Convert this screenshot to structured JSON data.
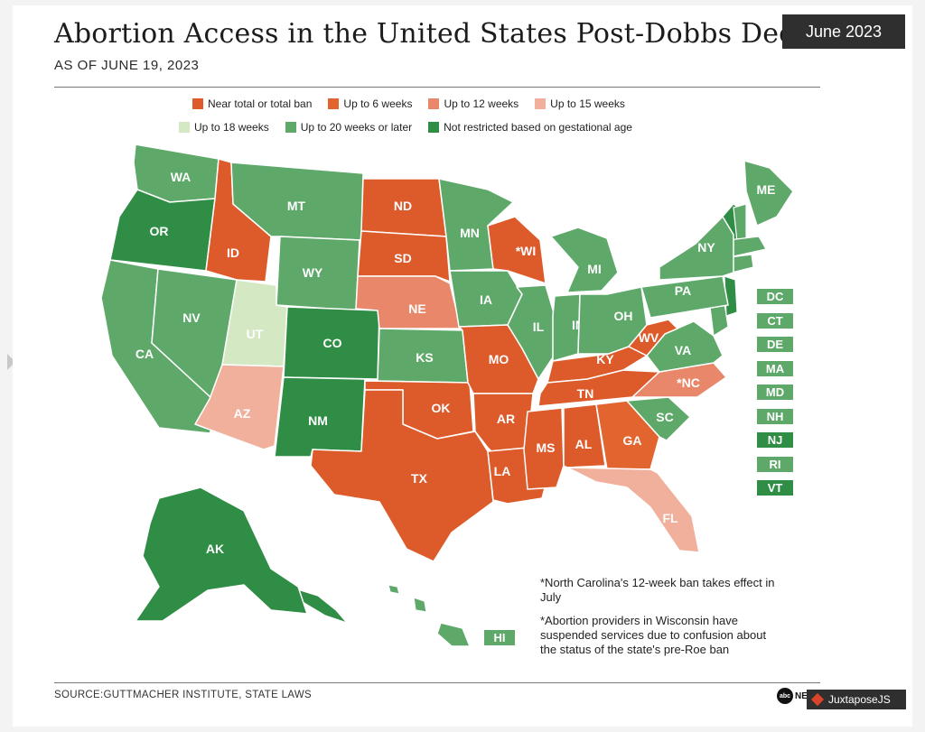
{
  "header": {
    "title": "Abortion Access in the United States Post-Dobbs Decision",
    "subtitle": "AS OF JUNE 19, 2023",
    "badge": "June 2023"
  },
  "colors": {
    "ban": "#dd5a2b",
    "w6": "#e2652f",
    "w12": "#e8876a",
    "w15": "#f1b09c",
    "w18": "#d4e8c4",
    "w20": "#5ea86a",
    "unrestricted": "#2f8d45"
  },
  "legend": {
    "row1": [
      {
        "label": "Near total or total ban",
        "color": "#dd5a2b"
      },
      {
        "label": "Up to 6 weeks",
        "color": "#e2652f"
      },
      {
        "label": "Up to 12 weeks",
        "color": "#e8876a"
      },
      {
        "label": "Up to 15 weeks",
        "color": "#f1b09c"
      }
    ],
    "row2": [
      {
        "label": "Up to 18 weeks",
        "color": "#d4e8c4"
      },
      {
        "label": "Up to 20 weeks or later",
        "color": "#5ea86a"
      },
      {
        "label": "Not restricted based on gestational age",
        "color": "#2f8d45"
      }
    ]
  },
  "states": [
    {
      "abbr": "WA",
      "category": "w20"
    },
    {
      "abbr": "OR",
      "category": "unrestricted"
    },
    {
      "abbr": "CA",
      "category": "w20"
    },
    {
      "abbr": "NV",
      "category": "w20"
    },
    {
      "abbr": "ID",
      "category": "ban"
    },
    {
      "abbr": "MT",
      "category": "w20"
    },
    {
      "abbr": "WY",
      "category": "w20"
    },
    {
      "abbr": "UT",
      "category": "w18"
    },
    {
      "abbr": "AZ",
      "category": "w15"
    },
    {
      "abbr": "CO",
      "category": "unrestricted"
    },
    {
      "abbr": "NM",
      "category": "unrestricted"
    },
    {
      "abbr": "ND",
      "category": "ban"
    },
    {
      "abbr": "SD",
      "category": "ban"
    },
    {
      "abbr": "NE",
      "category": "w12"
    },
    {
      "abbr": "KS",
      "category": "w20"
    },
    {
      "abbr": "OK",
      "category": "ban"
    },
    {
      "abbr": "TX",
      "category": "ban"
    },
    {
      "abbr": "MN",
      "category": "w20"
    },
    {
      "abbr": "IA",
      "category": "w20"
    },
    {
      "abbr": "MO",
      "category": "ban"
    },
    {
      "abbr": "AR",
      "category": "ban"
    },
    {
      "abbr": "LA",
      "category": "ban"
    },
    {
      "abbr": "*WI",
      "category": "ban"
    },
    {
      "abbr": "IL",
      "category": "w20"
    },
    {
      "abbr": "MI",
      "category": "w20"
    },
    {
      "abbr": "IN",
      "category": "w20"
    },
    {
      "abbr": "OH",
      "category": "w20"
    },
    {
      "abbr": "KY",
      "category": "ban"
    },
    {
      "abbr": "TN",
      "category": "ban"
    },
    {
      "abbr": "MS",
      "category": "ban"
    },
    {
      "abbr": "AL",
      "category": "ban"
    },
    {
      "abbr": "GA",
      "category": "w6"
    },
    {
      "abbr": "FL",
      "category": "w15"
    },
    {
      "abbr": "SC",
      "category": "w20"
    },
    {
      "abbr": "*NC",
      "category": "w12"
    },
    {
      "abbr": "VA",
      "category": "w20"
    },
    {
      "abbr": "WV",
      "category": "ban"
    },
    {
      "abbr": "PA",
      "category": "w20"
    },
    {
      "abbr": "NY",
      "category": "w20"
    },
    {
      "abbr": "ME",
      "category": "w20"
    },
    {
      "abbr": "AK",
      "category": "unrestricted"
    },
    {
      "abbr": "HI",
      "category": "w20"
    }
  ],
  "small_states": [
    {
      "abbr": "DC",
      "category": "w20"
    },
    {
      "abbr": "CT",
      "category": "w20"
    },
    {
      "abbr": "DE",
      "category": "w20"
    },
    {
      "abbr": "MA",
      "category": "w20"
    },
    {
      "abbr": "MD",
      "category": "w20"
    },
    {
      "abbr": "NH",
      "category": "w20"
    },
    {
      "abbr": "NJ",
      "category": "unrestricted"
    },
    {
      "abbr": "RI",
      "category": "w20"
    },
    {
      "abbr": "VT",
      "category": "unrestricted"
    }
  ],
  "notes": {
    "nc": "*North Carolina's 12-week ban takes effect in July",
    "wi": "*Abortion providers in Wisconsin have suspended services due to confusion about the status of the state's pre-Roe ban"
  },
  "footer": {
    "source": "SOURCE:GUTTMACHER INSTITUTE, STATE LAWS",
    "logo": "abc NEWS",
    "watermark": "JuxtaposeJS"
  }
}
